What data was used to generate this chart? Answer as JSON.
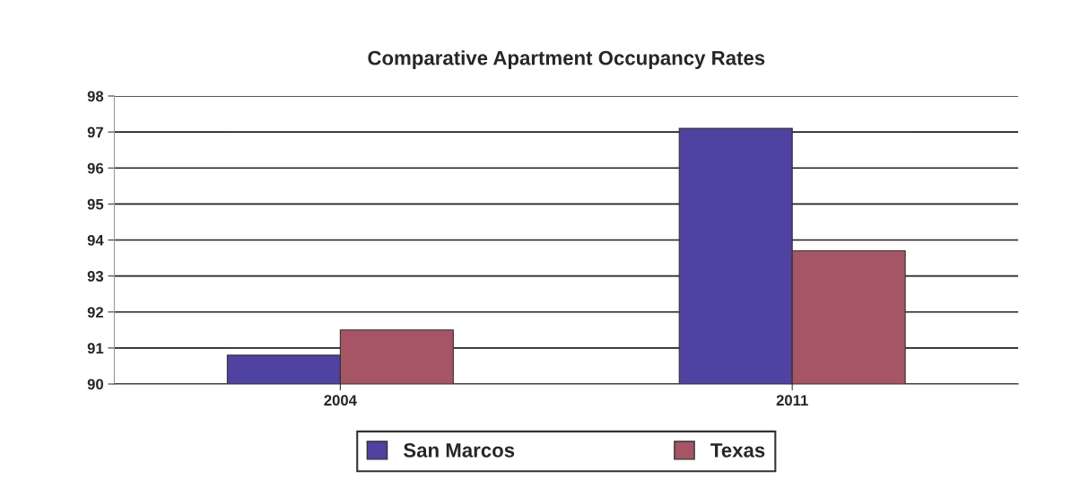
{
  "chart_data": {
    "type": "bar",
    "title": "Comparative Apartment Occupancy Rates",
    "categories": [
      "2004",
      "2011"
    ],
    "series": [
      {
        "name": "San Marcos",
        "color": "#4f42a0",
        "values": [
          90.8,
          97.1
        ]
      },
      {
        "name": "Texas",
        "color": "#a65565",
        "values": [
          91.5,
          93.7
        ]
      }
    ],
    "ylim": [
      90,
      98
    ],
    "yticks": [
      90,
      91,
      92,
      93,
      94,
      95,
      96,
      97,
      98
    ],
    "grid": "y",
    "legend": "bottom"
  }
}
